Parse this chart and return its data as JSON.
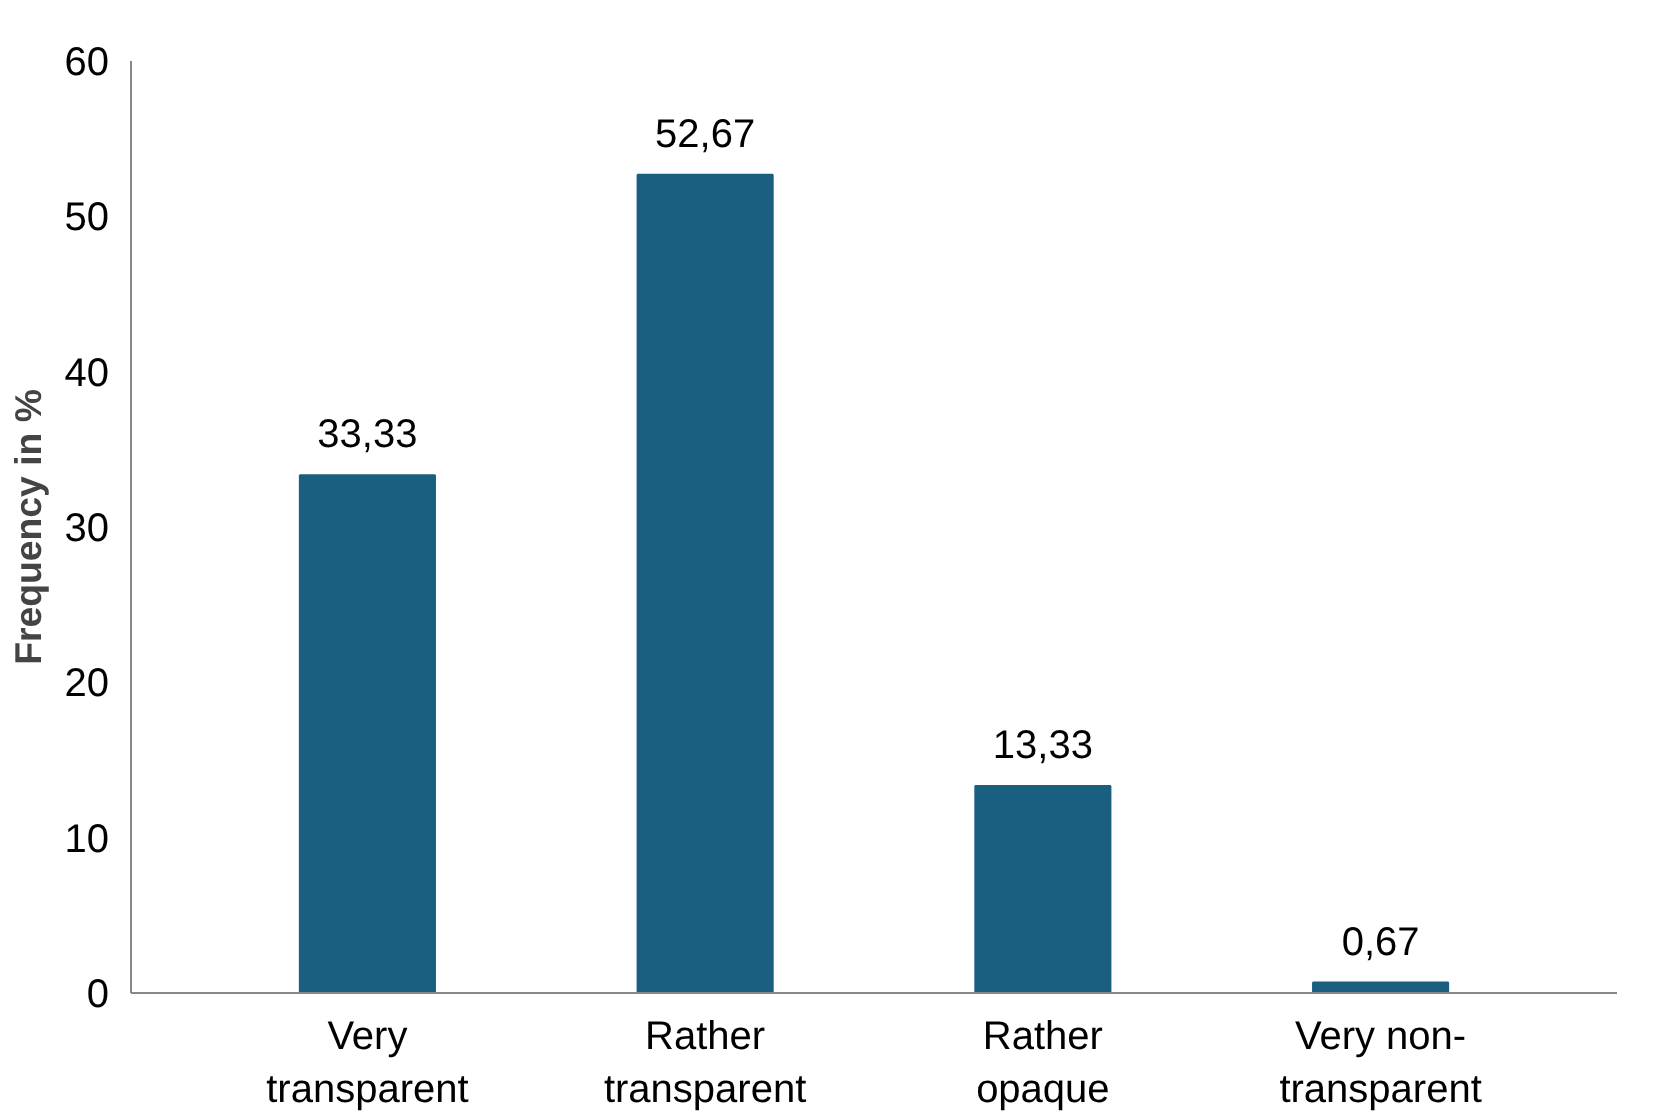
{
  "chart_data": {
    "type": "bar",
    "ylabel": "Frequency in %",
    "categories": [
      "Very transparent",
      "Rather transparent",
      "Rather opaque",
      "Very non-transparent"
    ],
    "values": [
      33.33,
      52.67,
      13.33,
      0.67
    ],
    "value_labels": [
      "33,33",
      "52,67",
      "13,33",
      "0,67"
    ],
    "color": "#1a5f80",
    "ylim": [
      0,
      60
    ],
    "yticks": [
      0,
      10,
      20,
      30,
      40,
      50,
      60
    ],
    "grid": false
  }
}
